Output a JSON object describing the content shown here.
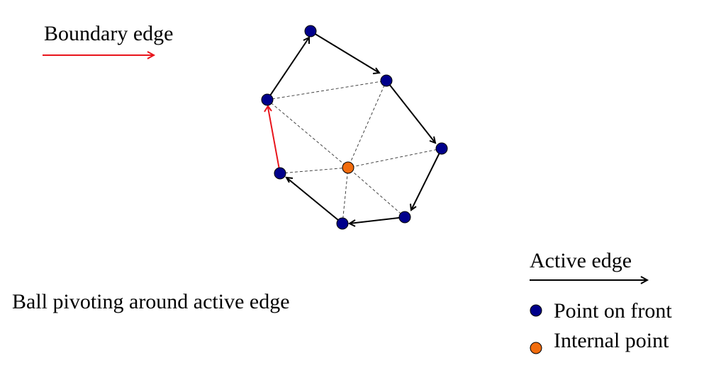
{
  "labels": {
    "boundary_edge": "Boundary edge",
    "active_edge": "Active edge",
    "caption": "Ball pivoting around active edge",
    "point_on_front": "Point on front",
    "internal_point": "Internal point"
  },
  "colors": {
    "front_point": "#00008b",
    "internal_point": "#f26c0d",
    "boundary_edge": "#e8141b",
    "active_edge": "#000000",
    "internal_edge": "#444444"
  },
  "icons": {
    "arrowhead": "open-arrowhead",
    "front_point": "filled-circle",
    "internal_point": "filled-circle"
  }
}
